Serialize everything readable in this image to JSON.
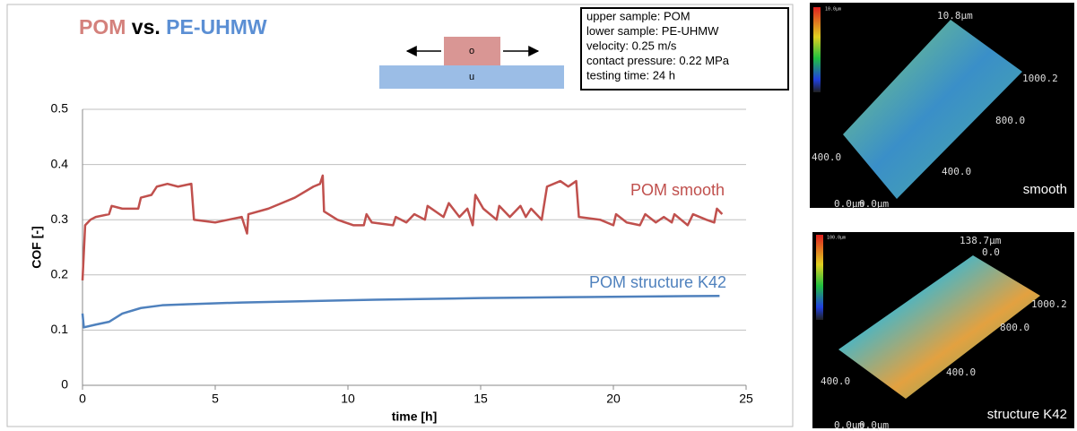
{
  "chart_data": {
    "type": "line",
    "title": [
      "POM",
      "vs.",
      "PE-UHMW"
    ],
    "x_label": "time [h]",
    "y_label": "COF [-]",
    "xlim": [
      0,
      25
    ],
    "xticks": [
      0,
      5,
      10,
      15,
      20,
      25
    ],
    "ylim": [
      0,
      0.5
    ],
    "yticks": [
      0,
      0.1,
      0.2,
      0.3,
      0.4,
      0.5
    ],
    "grid": true,
    "series": [
      {
        "name": "POM smooth",
        "color": "#c0504d",
        "x": [
          0,
          0.1,
          0.3,
          0.5,
          1,
          1.1,
          1.5,
          2.1,
          2.2,
          2.6,
          2.8,
          3.2,
          3.6,
          4.1,
          4.2,
          5,
          5.5,
          6,
          6.1,
          6.2,
          6.25,
          7,
          7.5,
          8,
          8.7,
          8.95,
          9.05,
          9.1,
          9.6,
          10.2,
          10.6,
          10.7,
          10.9,
          11.7,
          11.8,
          12.2,
          12.5,
          12.9,
          13,
          13.6,
          13.8,
          14.2,
          14.5,
          14.7,
          14.8,
          15.1,
          15.6,
          15.7,
          16.1,
          16.5,
          16.7,
          16.9,
          17.3,
          17.5,
          18,
          18.3,
          18.6,
          18.7,
          19.5,
          20,
          20.1,
          20.5,
          21,
          21.2,
          21.6,
          21.9,
          22.2,
          22.3,
          22.8,
          23,
          23.5,
          23.8,
          23.9,
          24.1
        ],
        "values": [
          0.19,
          0.29,
          0.3,
          0.305,
          0.31,
          0.325,
          0.32,
          0.32,
          0.34,
          0.345,
          0.36,
          0.365,
          0.36,
          0.365,
          0.3,
          0.295,
          0.3,
          0.305,
          0.29,
          0.275,
          0.31,
          0.32,
          0.33,
          0.34,
          0.36,
          0.365,
          0.38,
          0.315,
          0.3,
          0.29,
          0.29,
          0.31,
          0.295,
          0.29,
          0.305,
          0.295,
          0.31,
          0.3,
          0.325,
          0.305,
          0.33,
          0.305,
          0.32,
          0.29,
          0.345,
          0.32,
          0.3,
          0.325,
          0.305,
          0.325,
          0.305,
          0.32,
          0.3,
          0.36,
          0.37,
          0.36,
          0.37,
          0.305,
          0.3,
          0.29,
          0.31,
          0.295,
          0.29,
          0.31,
          0.295,
          0.305,
          0.295,
          0.31,
          0.29,
          0.31,
          0.3,
          0.295,
          0.32,
          0.31
        ]
      },
      {
        "name": "POM structure K42",
        "color": "#4f81bd",
        "x": [
          0,
          0.05,
          0.5,
          1,
          1.5,
          2.2,
          3,
          4,
          6,
          8,
          11,
          15,
          19,
          24
        ],
        "values": [
          0.13,
          0.105,
          0.11,
          0.115,
          0.13,
          0.14,
          0.145,
          0.147,
          0.15,
          0.152,
          0.155,
          0.158,
          0.16,
          0.162
        ]
      }
    ]
  },
  "diagram": {
    "upper": "o",
    "lower": "u"
  },
  "info_box": [
    "upper sample: POM",
    "lower sample: PE-UHMW",
    "velocity: 0.25 m/s",
    "contact pressure: 0.22 MPa",
    "testing time: 24 h"
  ],
  "images": [
    {
      "caption": "smooth",
      "labels": [
        "10.0µm",
        "10.8µm",
        "1000.2",
        "800.0",
        "400.0",
        "400.0",
        "0.0µm",
        "0.0µm"
      ]
    },
    {
      "caption": "structure K42",
      "labels": [
        "100.0µm",
        "138.7µm",
        "0.0",
        "1000.2",
        "800.0",
        "400.0",
        "400.0",
        "0.0µm",
        "0.0µm"
      ]
    }
  ]
}
